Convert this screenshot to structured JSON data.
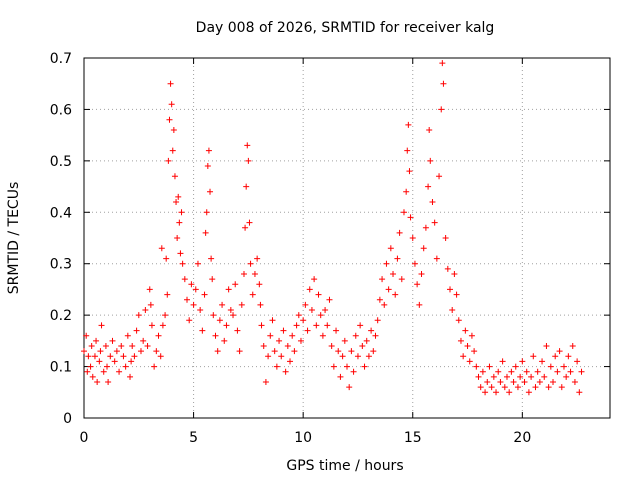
{
  "chart_data": {
    "type": "scatter",
    "title": "Day 008 of 2026, SRMTID for receiver kalg",
    "xlabel": "GPS time / hours",
    "ylabel": "SRMTID / TECUs",
    "xlim": [
      0,
      24
    ],
    "ylim": [
      0,
      0.7
    ],
    "xticks": [
      0,
      5,
      10,
      15,
      20
    ],
    "xtick_labels": [
      "0",
      "5",
      "10",
      "15",
      "20"
    ],
    "yticks": [
      0,
      0.1,
      0.2,
      0.3,
      0.4,
      0.5,
      0.6,
      0.7
    ],
    "ytick_labels": [
      "0",
      "0.1",
      "0.2",
      "0.3",
      "0.4",
      "0.5",
      "0.6",
      "0.7"
    ],
    "grid": true,
    "marker": "plus",
    "color": "#ff0000",
    "series": [
      {
        "name": "SRMTID",
        "points": [
          [
            0.0,
            0.13
          ],
          [
            0.1,
            0.16
          ],
          [
            0.15,
            0.09
          ],
          [
            0.2,
            0.12
          ],
          [
            0.3,
            0.1
          ],
          [
            0.35,
            0.14
          ],
          [
            0.4,
            0.08
          ],
          [
            0.5,
            0.12
          ],
          [
            0.55,
            0.15
          ],
          [
            0.6,
            0.07
          ],
          [
            0.7,
            0.11
          ],
          [
            0.75,
            0.13
          ],
          [
            0.8,
            0.18
          ],
          [
            0.9,
            0.09
          ],
          [
            1.0,
            0.14
          ],
          [
            1.05,
            0.1
          ],
          [
            1.1,
            0.07
          ],
          [
            1.2,
            0.12
          ],
          [
            1.3,
            0.15
          ],
          [
            1.4,
            0.11
          ],
          [
            1.5,
            0.13
          ],
          [
            1.6,
            0.09
          ],
          [
            1.7,
            0.14
          ],
          [
            1.8,
            0.12
          ],
          [
            1.9,
            0.1
          ],
          [
            2.0,
            0.16
          ],
          [
            2.1,
            0.08
          ],
          [
            2.15,
            0.11
          ],
          [
            2.2,
            0.14
          ],
          [
            2.3,
            0.12
          ],
          [
            2.4,
            0.17
          ],
          [
            2.5,
            0.2
          ],
          [
            2.6,
            0.13
          ],
          [
            2.7,
            0.15
          ],
          [
            2.8,
            0.21
          ],
          [
            2.9,
            0.14
          ],
          [
            3.0,
            0.25
          ],
          [
            3.05,
            0.22
          ],
          [
            3.1,
            0.18
          ],
          [
            3.2,
            0.1
          ],
          [
            3.3,
            0.13
          ],
          [
            3.4,
            0.16
          ],
          [
            3.5,
            0.12
          ],
          [
            3.55,
            0.33
          ],
          [
            3.6,
            0.18
          ],
          [
            3.7,
            0.2
          ],
          [
            3.75,
            0.31
          ],
          [
            3.8,
            0.24
          ],
          [
            3.85,
            0.5
          ],
          [
            3.9,
            0.58
          ],
          [
            3.95,
            0.65
          ],
          [
            4.0,
            0.61
          ],
          [
            4.05,
            0.52
          ],
          [
            4.1,
            0.56
          ],
          [
            4.15,
            0.47
          ],
          [
            4.2,
            0.42
          ],
          [
            4.25,
            0.35
          ],
          [
            4.3,
            0.43
          ],
          [
            4.35,
            0.38
          ],
          [
            4.4,
            0.32
          ],
          [
            4.45,
            0.4
          ],
          [
            4.5,
            0.3
          ],
          [
            4.6,
            0.27
          ],
          [
            4.7,
            0.23
          ],
          [
            4.8,
            0.19
          ],
          [
            4.9,
            0.26
          ],
          [
            5.0,
            0.22
          ],
          [
            5.1,
            0.25
          ],
          [
            5.2,
            0.3
          ],
          [
            5.3,
            0.21
          ],
          [
            5.4,
            0.17
          ],
          [
            5.5,
            0.24
          ],
          [
            5.55,
            0.36
          ],
          [
            5.6,
            0.4
          ],
          [
            5.65,
            0.49
          ],
          [
            5.7,
            0.52
          ],
          [
            5.75,
            0.44
          ],
          [
            5.8,
            0.31
          ],
          [
            5.85,
            0.27
          ],
          [
            5.9,
            0.2
          ],
          [
            6.0,
            0.16
          ],
          [
            6.1,
            0.13
          ],
          [
            6.2,
            0.19
          ],
          [
            6.3,
            0.22
          ],
          [
            6.4,
            0.15
          ],
          [
            6.5,
            0.18
          ],
          [
            6.6,
            0.25
          ],
          [
            6.7,
            0.21
          ],
          [
            6.8,
            0.2
          ],
          [
            6.9,
            0.26
          ],
          [
            7.0,
            0.17
          ],
          [
            7.1,
            0.13
          ],
          [
            7.2,
            0.22
          ],
          [
            7.3,
            0.28
          ],
          [
            7.35,
            0.37
          ],
          [
            7.4,
            0.45
          ],
          [
            7.45,
            0.53
          ],
          [
            7.5,
            0.5
          ],
          [
            7.55,
            0.38
          ],
          [
            7.6,
            0.3
          ],
          [
            7.7,
            0.24
          ],
          [
            7.8,
            0.28
          ],
          [
            7.9,
            0.31
          ],
          [
            8.0,
            0.26
          ],
          [
            8.05,
            0.22
          ],
          [
            8.1,
            0.18
          ],
          [
            8.2,
            0.14
          ],
          [
            8.3,
            0.07
          ],
          [
            8.4,
            0.12
          ],
          [
            8.5,
            0.16
          ],
          [
            8.6,
            0.19
          ],
          [
            8.7,
            0.13
          ],
          [
            8.8,
            0.1
          ],
          [
            8.9,
            0.15
          ],
          [
            9.0,
            0.12
          ],
          [
            9.1,
            0.17
          ],
          [
            9.2,
            0.09
          ],
          [
            9.3,
            0.14
          ],
          [
            9.4,
            0.11
          ],
          [
            9.5,
            0.16
          ],
          [
            9.6,
            0.13
          ],
          [
            9.7,
            0.18
          ],
          [
            9.8,
            0.2
          ],
          [
            9.9,
            0.15
          ],
          [
            10.0,
            0.19
          ],
          [
            10.1,
            0.22
          ],
          [
            10.2,
            0.17
          ],
          [
            10.3,
            0.25
          ],
          [
            10.4,
            0.21
          ],
          [
            10.5,
            0.27
          ],
          [
            10.6,
            0.18
          ],
          [
            10.7,
            0.24
          ],
          [
            10.8,
            0.2
          ],
          [
            10.9,
            0.16
          ],
          [
            11.0,
            0.21
          ],
          [
            11.1,
            0.18
          ],
          [
            11.2,
            0.23
          ],
          [
            11.3,
            0.14
          ],
          [
            11.4,
            0.1
          ],
          [
            11.5,
            0.17
          ],
          [
            11.6,
            0.13
          ],
          [
            11.7,
            0.08
          ],
          [
            11.8,
            0.12
          ],
          [
            11.9,
            0.15
          ],
          [
            12.0,
            0.1
          ],
          [
            12.1,
            0.06
          ],
          [
            12.2,
            0.13
          ],
          [
            12.3,
            0.09
          ],
          [
            12.4,
            0.16
          ],
          [
            12.5,
            0.12
          ],
          [
            12.6,
            0.18
          ],
          [
            12.7,
            0.14
          ],
          [
            12.8,
            0.1
          ],
          [
            12.9,
            0.15
          ],
          [
            13.0,
            0.12
          ],
          [
            13.1,
            0.17
          ],
          [
            13.2,
            0.13
          ],
          [
            13.3,
            0.16
          ],
          [
            13.4,
            0.19
          ],
          [
            13.5,
            0.23
          ],
          [
            13.6,
            0.27
          ],
          [
            13.7,
            0.22
          ],
          [
            13.8,
            0.3
          ],
          [
            13.9,
            0.25
          ],
          [
            14.0,
            0.33
          ],
          [
            14.1,
            0.28
          ],
          [
            14.2,
            0.24
          ],
          [
            14.3,
            0.31
          ],
          [
            14.4,
            0.36
          ],
          [
            14.5,
            0.27
          ],
          [
            14.6,
            0.4
          ],
          [
            14.7,
            0.44
          ],
          [
            14.75,
            0.52
          ],
          [
            14.8,
            0.57
          ],
          [
            14.85,
            0.48
          ],
          [
            14.9,
            0.39
          ],
          [
            15.0,
            0.35
          ],
          [
            15.1,
            0.3
          ],
          [
            15.2,
            0.26
          ],
          [
            15.3,
            0.22
          ],
          [
            15.4,
            0.28
          ],
          [
            15.5,
            0.33
          ],
          [
            15.6,
            0.37
          ],
          [
            15.7,
            0.45
          ],
          [
            15.75,
            0.56
          ],
          [
            15.8,
            0.5
          ],
          [
            15.9,
            0.42
          ],
          [
            16.0,
            0.38
          ],
          [
            16.1,
            0.31
          ],
          [
            16.2,
            0.47
          ],
          [
            16.3,
            0.6
          ],
          [
            16.35,
            0.69
          ],
          [
            16.4,
            0.65
          ],
          [
            16.5,
            0.35
          ],
          [
            16.6,
            0.29
          ],
          [
            16.7,
            0.25
          ],
          [
            16.8,
            0.21
          ],
          [
            16.9,
            0.28
          ],
          [
            17.0,
            0.24
          ],
          [
            17.1,
            0.19
          ],
          [
            17.2,
            0.15
          ],
          [
            17.3,
            0.12
          ],
          [
            17.4,
            0.17
          ],
          [
            17.5,
            0.14
          ],
          [
            17.6,
            0.11
          ],
          [
            17.7,
            0.16
          ],
          [
            17.8,
            0.13
          ],
          [
            17.9,
            0.1
          ],
          [
            18.0,
            0.08
          ],
          [
            18.1,
            0.06
          ],
          [
            18.2,
            0.09
          ],
          [
            18.3,
            0.05
          ],
          [
            18.4,
            0.07
          ],
          [
            18.5,
            0.1
          ],
          [
            18.6,
            0.06
          ],
          [
            18.7,
            0.08
          ],
          [
            18.8,
            0.05
          ],
          [
            18.9,
            0.09
          ],
          [
            19.0,
            0.07
          ],
          [
            19.1,
            0.11
          ],
          [
            19.2,
            0.06
          ],
          [
            19.3,
            0.08
          ],
          [
            19.4,
            0.05
          ],
          [
            19.5,
            0.09
          ],
          [
            19.6,
            0.07
          ],
          [
            19.7,
            0.1
          ],
          [
            19.8,
            0.06
          ],
          [
            19.9,
            0.08
          ],
          [
            20.0,
            0.11
          ],
          [
            20.1,
            0.07
          ],
          [
            20.2,
            0.09
          ],
          [
            20.3,
            0.05
          ],
          [
            20.4,
            0.08
          ],
          [
            20.5,
            0.12
          ],
          [
            20.6,
            0.06
          ],
          [
            20.7,
            0.09
          ],
          [
            20.8,
            0.07
          ],
          [
            20.9,
            0.11
          ],
          [
            21.0,
            0.08
          ],
          [
            21.1,
            0.14
          ],
          [
            21.2,
            0.06
          ],
          [
            21.3,
            0.1
          ],
          [
            21.4,
            0.07
          ],
          [
            21.5,
            0.12
          ],
          [
            21.6,
            0.09
          ],
          [
            21.7,
            0.13
          ],
          [
            21.8,
            0.06
          ],
          [
            21.9,
            0.1
          ],
          [
            22.0,
            0.08
          ],
          [
            22.1,
            0.12
          ],
          [
            22.2,
            0.09
          ],
          [
            22.3,
            0.14
          ],
          [
            22.4,
            0.07
          ],
          [
            22.5,
            0.11
          ],
          [
            22.6,
            0.05
          ],
          [
            22.7,
            0.09
          ]
        ]
      }
    ]
  }
}
